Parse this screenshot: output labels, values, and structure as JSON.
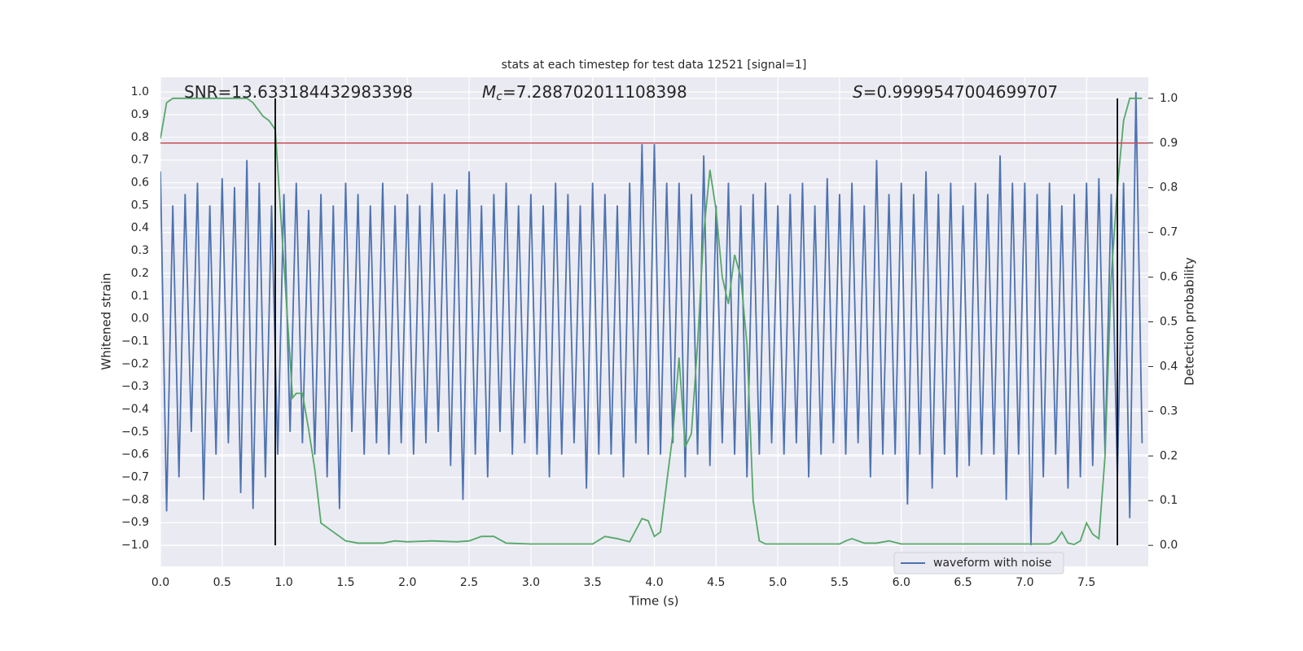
{
  "chart_data": {
    "type": "line",
    "title": "stats at each timestep for test data 12521 [signal=1]",
    "xlabel": "Time (s)",
    "ylabel": "Whitened strain",
    "y2label": "Detection probability",
    "xlim": [
      0,
      8.0
    ],
    "ylim": [
      -1.093,
      1.065
    ],
    "y2lim": [
      -0.047,
      1.047
    ],
    "grid": true,
    "legend": "lower right",
    "background": "#eaeaf2",
    "xticks": [
      {
        "value": 0,
        "label": "0.0"
      },
      0.5,
      {
        "value": 1,
        "label": "1.0"
      },
      1.5,
      {
        "value": 2,
        "label": "2.0"
      },
      2.5,
      {
        "value": 3,
        "label": "3.0"
      },
      3.5,
      {
        "value": 4,
        "label": "4.0"
      },
      4.5,
      {
        "value": 5,
        "label": "5.0"
      },
      5.5,
      {
        "value": 6,
        "label": "6.0"
      },
      6.5,
      {
        "value": 7,
        "label": "7.0"
      },
      7.5
    ],
    "yticks": [
      {
        "value": -1,
        "label": "−1.0"
      },
      {
        "value": -0.9,
        "label": "−0.9"
      },
      {
        "value": -0.8,
        "label": "−0.8"
      },
      {
        "value": -0.7,
        "label": "−0.7"
      },
      {
        "value": -0.6,
        "label": "−0.6"
      },
      {
        "value": -0.5,
        "label": "−0.5"
      },
      {
        "value": -0.4,
        "label": "−0.4"
      },
      {
        "value": -0.3,
        "label": "−0.3"
      },
      {
        "value": -0.2,
        "label": "−0.2"
      },
      {
        "value": -0.1,
        "label": "−0.1"
      },
      {
        "value": 0,
        "label": "0.0"
      },
      0.1,
      0.2,
      0.3,
      0.4,
      0.5,
      0.6,
      0.7,
      0.8,
      0.9,
      {
        "value": 1,
        "label": "1.0"
      }
    ],
    "y2ticks": [
      {
        "value": 0,
        "label": "0.0"
      },
      0.1,
      0.2,
      0.3,
      0.4,
      0.5,
      0.6,
      0.7,
      0.8,
      0.9,
      {
        "value": 1,
        "label": "1.0"
      }
    ],
    "annotations": [
      {
        "text": "SNR=13.633184432983398"
      },
      {
        "symbol": "M",
        "subscript": "c",
        "text": "=7.288702011108398"
      },
      {
        "symbol": "S",
        "text": "=0.9999547004699707"
      }
    ],
    "threshold": {
      "value": 0.9,
      "axis": "y2",
      "color": "#c44e52"
    },
    "vlines": {
      "x": [
        0.93,
        7.75
      ],
      "color": "#000000"
    },
    "series": [
      {
        "name": "waveform with noise",
        "color": "#4c72b0",
        "x": [
          0,
          0.05,
          0.1,
          0.15,
          0.2,
          0.25,
          0.3,
          0.35,
          0.4,
          0.45,
          0.5,
          0.55,
          0.6,
          0.65,
          0.7,
          0.75,
          0.8,
          0.85,
          0.9,
          0.95,
          1,
          1.05,
          1.1,
          1.15,
          1.2,
          1.25,
          1.3,
          1.35,
          1.4,
          1.45,
          1.5,
          1.55,
          1.6,
          1.65,
          1.7,
          1.75,
          1.8,
          1.85,
          1.9,
          1.95,
          2,
          2.05,
          2.1,
          2.15,
          2.2,
          2.25,
          2.3,
          2.35,
          2.4,
          2.45,
          2.5,
          2.55,
          2.6,
          2.65,
          2.7,
          2.75,
          2.8,
          2.85,
          2.9,
          2.95,
          3,
          3.05,
          3.1,
          3.15,
          3.2,
          3.25,
          3.3,
          3.35,
          3.4,
          3.45,
          3.5,
          3.55,
          3.6,
          3.65,
          3.7,
          3.75,
          3.8,
          3.85,
          3.9,
          3.95,
          4,
          4.05,
          4.1,
          4.15,
          4.2,
          4.25,
          4.3,
          4.35,
          4.4,
          4.45,
          4.5,
          4.55,
          4.6,
          4.65,
          4.7,
          4.75,
          4.8,
          4.85,
          4.9,
          4.95,
          5,
          5.05,
          5.1,
          5.15,
          5.2,
          5.25,
          5.3,
          5.35,
          5.4,
          5.45,
          5.5,
          5.55,
          5.6,
          5.65,
          5.7,
          5.75,
          5.8,
          5.85,
          5.9,
          5.95,
          6,
          6.05,
          6.1,
          6.15,
          6.2,
          6.25,
          6.3,
          6.35,
          6.4,
          6.45,
          6.5,
          6.55,
          6.6,
          6.65,
          6.7,
          6.75,
          6.8,
          6.85,
          6.9,
          6.95,
          7,
          7.05,
          7.1,
          7.15,
          7.2,
          7.25,
          7.3,
          7.35,
          7.4,
          7.45,
          7.5,
          7.55,
          7.6,
          7.65,
          7.7,
          7.75,
          7.8,
          7.85,
          7.9,
          7.95
        ],
        "values": [
          0.65,
          -0.85,
          0.5,
          -0.7,
          0.55,
          -0.5,
          0.6,
          -0.8,
          0.5,
          -0.6,
          0.62,
          -0.55,
          0.58,
          -0.77,
          0.7,
          -0.84,
          0.6,
          -0.7,
          0.5,
          -0.6,
          0.55,
          -0.5,
          0.6,
          -0.55,
          0.48,
          -0.6,
          0.55,
          -0.7,
          0.5,
          -0.84,
          0.6,
          -0.5,
          0.55,
          -0.6,
          0.5,
          -0.55,
          0.6,
          -0.6,
          0.5,
          -0.55,
          0.55,
          -0.6,
          0.5,
          -0.55,
          0.6,
          -0.5,
          0.55,
          -0.65,
          0.57,
          -0.8,
          0.65,
          -0.6,
          0.5,
          -0.7,
          0.55,
          -0.5,
          0.6,
          -0.6,
          0.5,
          -0.55,
          0.55,
          -0.6,
          0.5,
          -0.7,
          0.6,
          -0.6,
          0.55,
          -0.55,
          0.5,
          -0.75,
          0.6,
          -0.6,
          0.55,
          -0.6,
          0.5,
          -0.7,
          0.6,
          -0.55,
          0.77,
          -0.6,
          0.77,
          -0.6,
          0.6,
          -0.55,
          0.6,
          -0.7,
          0.55,
          -0.6,
          0.72,
          -0.65,
          0.5,
          -0.55,
          0.6,
          -0.6,
          0.5,
          -0.7,
          0.55,
          -0.6,
          0.6,
          -0.55,
          0.5,
          -0.6,
          0.55,
          -0.55,
          0.6,
          -0.7,
          0.5,
          -0.6,
          0.62,
          -0.55,
          0.55,
          -0.6,
          0.6,
          -0.55,
          0.5,
          -0.7,
          0.7,
          -0.6,
          0.55,
          -0.6,
          0.6,
          -0.82,
          0.55,
          -0.6,
          0.65,
          -0.75,
          0.55,
          -0.6,
          0.6,
          -0.7,
          0.5,
          -0.65,
          0.6,
          -0.6,
          0.55,
          -0.6,
          0.72,
          -0.8,
          0.6,
          -0.6,
          0.6,
          -1.0,
          0.55,
          -0.7,
          0.6,
          -0.6,
          0.5,
          -0.75,
          0.55,
          -0.7,
          0.6,
          -0.65,
          0.62,
          -0.6,
          0.55,
          -0.7,
          0.6,
          -0.88,
          1.0,
          -0.55
        ]
      },
      {
        "color": "#55a868",
        "axis": "y2",
        "x": [
          0,
          0.05,
          0.1,
          0.7,
          0.75,
          0.83,
          0.88,
          0.93,
          1.07,
          1.1,
          1.15,
          1.2,
          1.25,
          1.3,
          1.4,
          1.5,
          1.6,
          1.7,
          1.8,
          1.9,
          2.0,
          2.2,
          2.4,
          2.5,
          2.6,
          2.7,
          2.8,
          3.0,
          3.5,
          3.6,
          3.7,
          3.8,
          3.9,
          3.95,
          4.0,
          4.05,
          4.15,
          4.2,
          4.25,
          4.3,
          4.35,
          4.4,
          4.45,
          4.5,
          4.55,
          4.6,
          4.65,
          4.7,
          4.75,
          4.8,
          4.85,
          4.9,
          5.0,
          5.5,
          5.55,
          5.6,
          5.7,
          5.8,
          5.9,
          6.0,
          7.2,
          7.25,
          7.3,
          7.35,
          7.4,
          7.45,
          7.5,
          7.55,
          7.6,
          7.65,
          7.7,
          7.75,
          7.8,
          7.85,
          7.95
        ],
        "values": [
          0.91,
          0.99,
          1.0,
          1.0,
          0.99,
          0.96,
          0.95,
          0.93,
          0.33,
          0.34,
          0.34,
          0.26,
          0.17,
          0.05,
          0.03,
          0.01,
          0.005,
          0.005,
          0.005,
          0.01,
          0.008,
          0.01,
          0.008,
          0.01,
          0.02,
          0.02,
          0.005,
          0.003,
          0.003,
          0.02,
          0.015,
          0.008,
          0.06,
          0.055,
          0.02,
          0.03,
          0.25,
          0.42,
          0.22,
          0.25,
          0.45,
          0.7,
          0.84,
          0.75,
          0.6,
          0.54,
          0.65,
          0.6,
          0.45,
          0.1,
          0.01,
          0.003,
          0.003,
          0.003,
          0.01,
          0.015,
          0.005,
          0.005,
          0.01,
          0.003,
          0.003,
          0.01,
          0.03,
          0.005,
          0.002,
          0.01,
          0.05,
          0.025,
          0.015,
          0.2,
          0.6,
          0.8,
          0.95,
          1.0,
          1.0
        ]
      }
    ]
  }
}
